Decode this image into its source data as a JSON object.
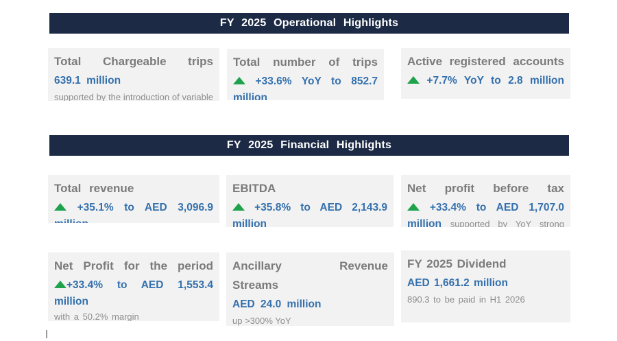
{
  "colors": {
    "header_bg": "#1c2a45",
    "header_text": "#ffffff",
    "value_blue": "#3470ad",
    "growth_green": "#1ea24c",
    "title_gray": "#7b7b7b",
    "note_gray": "#8d8d8d",
    "card_bg": "#f2f2f2"
  },
  "sections": [
    {
      "header": "FY 2025 Operational Highlights",
      "cards": [
        {
          "title": "Total Chargeable trips",
          "value": "639.1 million",
          "note": "supported by the introduction of variable"
        },
        {
          "title": "Total number of trips",
          "delta": "+33.6% YoY to 852.7",
          "delta_cont": "million"
        },
        {
          "title": "Active registered accounts",
          "delta": "+7.7% YoY to 2.8 million"
        }
      ]
    },
    {
      "header": "FY 2025 Financial Highlights",
      "cards": [
        {
          "title": "Total revenue",
          "delta": "+35.1% to AED 3,096.9",
          "delta_cont": "million"
        },
        {
          "title": "EBITDA",
          "delta": "+35.8% to AED 2,143.9",
          "delta_cont": "million"
        },
        {
          "title": "Net profit before tax",
          "delta": "+33.4% to AED 1,707.0",
          "delta_cont": "million",
          "note": "supported by YoY strong"
        },
        {
          "title": "Net Profit for the period",
          "delta_pct": "+33.4%",
          "delta_rest": "to AED 1,553.4",
          "delta_cont": "million",
          "note": "with a 50.2% margin"
        },
        {
          "title_line1": "Ancillary Revenue",
          "title_line2": "Streams",
          "value": "AED 24.0 million",
          "note": "up >300% YoY"
        },
        {
          "title": "FY 2025 Dividend",
          "value": "AED 1,661.2 million",
          "note": "890.3 to be paid in H1 2026"
        }
      ]
    }
  ]
}
